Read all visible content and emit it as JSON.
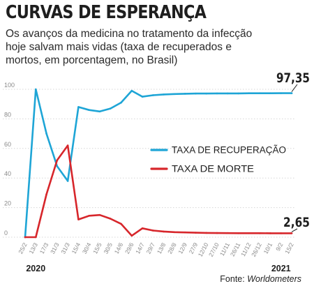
{
  "header": {
    "title": "CURVAS DE ESPERANÇA",
    "subtitle_lines": [
      "Os avanços da medicina no tratamento da infecção",
      "hoje salvam mais vidas  (taxa de recuperados e",
      "mortos, em porcentagem, no Brasil)"
    ]
  },
  "source": {
    "label": "Fonte:",
    "name": "Worldometers"
  },
  "colors": {
    "recovery": "#1ea5d6",
    "death": "#d7262b",
    "grid": "#d6d6d6",
    "axis_text": "#8a8a8a",
    "callout": "#1e1e1e"
  },
  "chart_data": {
    "type": "line",
    "title": "CURVAS DE ESPERANÇA",
    "xlabel": "",
    "ylabel": "",
    "ylim": [
      0,
      100
    ],
    "yticks": [
      0,
      20,
      40,
      60,
      80,
      100
    ],
    "grid": true,
    "legend_position": "center-right",
    "x": [
      "25/2",
      "13/3",
      "17/3",
      "31/3",
      "31/3",
      "15/4",
      "30/4",
      "15/5",
      "30/5",
      "14/6",
      "29/6",
      "14/7",
      "29/7",
      "13/8",
      "28/8",
      "12/9",
      "27/9",
      "12/10",
      "27/10",
      "11/11",
      "26/11",
      "11/12",
      "26/12",
      "10/1",
      "9/2",
      "15/2"
    ],
    "year_labels": [
      {
        "label": "2020",
        "at": "13/3"
      },
      {
        "label": "2021",
        "at": "9/2"
      }
    ],
    "series": [
      {
        "name": "TAXA DE RECUPERAÇÃO",
        "color": "#1ea5d6",
        "values": [
          0,
          100,
          70,
          48,
          38,
          88,
          86,
          85,
          87,
          91,
          99,
          95,
          96,
          96.5,
          96.8,
          97,
          97.1,
          97.1,
          97.2,
          97.2,
          97.2,
          97.3,
          97.3,
          97.3,
          97.35,
          97.35
        ]
      },
      {
        "name": "TAXA DE MORTE",
        "color": "#d7262b",
        "values": [
          0,
          0,
          29,
          52,
          62,
          12,
          14.5,
          15,
          12.5,
          9,
          1,
          6,
          4.5,
          3.8,
          3.4,
          3.2,
          3.0,
          2.9,
          2.8,
          2.75,
          2.7,
          2.7,
          2.68,
          2.66,
          2.65,
          2.65
        ]
      }
    ],
    "annotations": [
      {
        "text": "97,35",
        "series": "TAXA DE RECUPERAÇÃO",
        "at": "15/2"
      },
      {
        "text": "2,65",
        "series": "TAXA DE MORTE",
        "at": "15/2"
      }
    ]
  }
}
